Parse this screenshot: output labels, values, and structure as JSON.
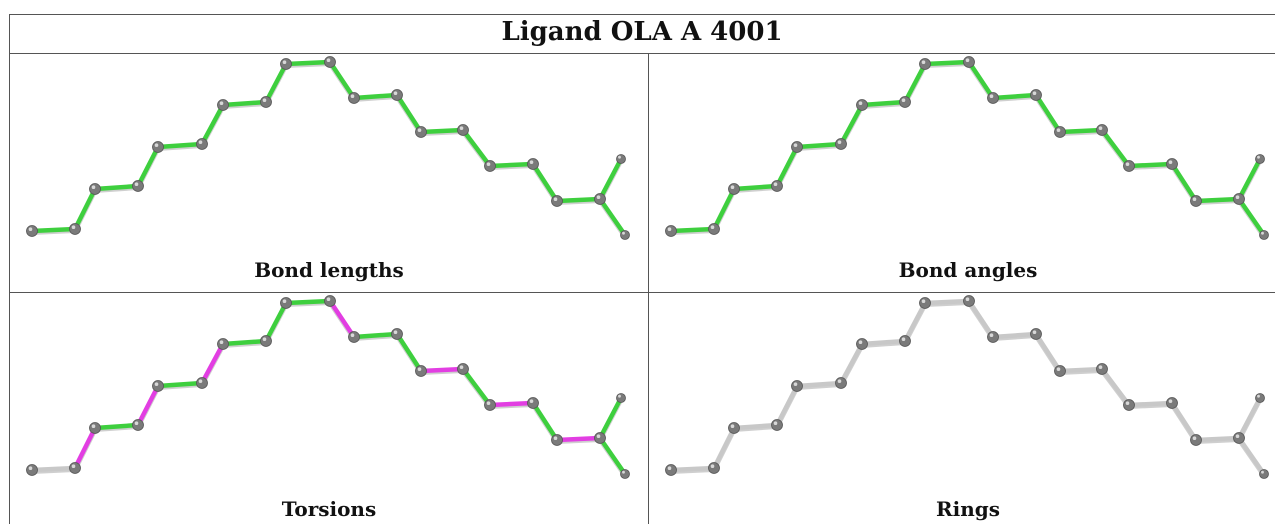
{
  "title": "Ligand OLA A 4001",
  "colors": {
    "good": "#3ecf3e",
    "outlier": "#e23ee2",
    "neutral": "#c8c8c8",
    "atom": "#7a7a7a"
  },
  "panels": [
    {
      "label": "Bond lengths",
      "bond_status": [
        "good",
        "good",
        "good",
        "good",
        "good",
        "good",
        "good",
        "good",
        "good",
        "good",
        "good",
        "good",
        "good",
        "good",
        "good",
        "good",
        "good",
        "good",
        "good",
        "neutral",
        "neutral",
        "neutral"
      ]
    },
    {
      "label": "Bond angles",
      "bond_status": [
        "good",
        "good",
        "good",
        "good",
        "good",
        "good",
        "good",
        "good",
        "good",
        "good",
        "good",
        "good",
        "good",
        "good",
        "good",
        "good",
        "good",
        "good",
        "good",
        "neutral",
        "neutral",
        "neutral"
      ]
    },
    {
      "label": "Torsions",
      "bond_status": [
        "neutral",
        "outlier",
        "good",
        "outlier",
        "good",
        "outlier",
        "good",
        "good",
        "good",
        "outlier",
        "good",
        "good",
        "outlier",
        "good",
        "outlier",
        "good",
        "outlier",
        "good",
        "good",
        "neutral",
        "neutral",
        "neutral"
      ]
    },
    {
      "label": "Rings",
      "bond_status": [
        "neutral",
        "neutral",
        "neutral",
        "neutral",
        "neutral",
        "neutral",
        "neutral",
        "neutral",
        "neutral",
        "neutral",
        "neutral",
        "neutral",
        "neutral",
        "neutral",
        "neutral",
        "neutral",
        "neutral",
        "neutral",
        "neutral",
        "neutral",
        "neutral",
        "neutral"
      ]
    }
  ]
}
